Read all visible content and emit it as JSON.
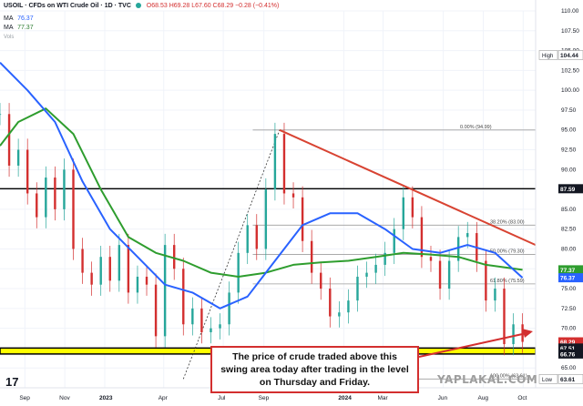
{
  "header": {
    "symbol": "USOIL · CFDs on WTI Crude Oil · 1D · TVC",
    "ohlc": "O68.53 H69.28 L67.60 C68.29 −0.28 (−0.41%)",
    "ma1_label": "MA",
    "ma1_value": "76.37",
    "ma2_label": "MA",
    "ma2_value": "77.37",
    "extra": "Vols"
  },
  "callout": {
    "text": "The price of crude traded above this swing area today after trading in the level on Thursday and Friday."
  },
  "watermark": "YAPLAKAL.COM",
  "logo": "17",
  "colors": {
    "bull": "#26a69a",
    "bear": "#d32f2f",
    "ma_blue": "#2962ff",
    "ma_green": "#2e9d2e",
    "trendline": "#d84332",
    "zone": "#ffff00"
  },
  "chart_data": {
    "type": "line",
    "title": "",
    "xlabel": "",
    "ylabel": "",
    "ylim": [
      62.5,
      110.0
    ],
    "y_ticks": [
      65.0,
      67.5,
      70.0,
      72.5,
      75.0,
      77.5,
      80.0,
      82.5,
      85.0,
      87.5,
      90.0,
      92.5,
      95.0,
      97.5,
      100.0,
      102.5,
      105.0,
      107.5,
      110.0
    ],
    "x_ticks": [
      "Sep",
      "Nov",
      "2023",
      "Apr",
      "Jul",
      "Sep",
      "2024",
      "Mar",
      "Jun",
      "Aug",
      "Oct"
    ],
    "x_tick_positions": [
      "2022-09-01",
      "2022-11-01",
      "2023-01-01",
      "2023-04-01",
      "2023-07-01",
      "2023-09-01",
      "2024-01-01",
      "2024-03-01",
      "2024-06-01",
      "2024-08-01",
      "2024-10-01"
    ],
    "x_range": [
      "2022-07-25",
      "2024-10-20"
    ],
    "price": {
      "name": "USOIL",
      "x": [
        "2022-07-25",
        "2022-08-08",
        "2022-08-22",
        "2022-09-05",
        "2022-09-19",
        "2022-10-03",
        "2022-10-17",
        "2022-10-31",
        "2022-11-14",
        "2022-11-28",
        "2022-12-12",
        "2022-12-26",
        "2023-01-09",
        "2023-01-23",
        "2023-02-06",
        "2023-02-20",
        "2023-03-06",
        "2023-03-20",
        "2023-04-03",
        "2023-04-17",
        "2023-05-01",
        "2023-05-15",
        "2023-05-29",
        "2023-06-12",
        "2023-06-26",
        "2023-07-10",
        "2023-07-24",
        "2023-08-07",
        "2023-08-21",
        "2023-09-04",
        "2023-09-18",
        "2023-10-02",
        "2023-10-16",
        "2023-10-30",
        "2023-11-13",
        "2023-11-27",
        "2023-12-11",
        "2023-12-25",
        "2024-01-08",
        "2024-01-22",
        "2024-02-05",
        "2024-02-19",
        "2024-03-04",
        "2024-03-18",
        "2024-04-01",
        "2024-04-15",
        "2024-04-29",
        "2024-05-13",
        "2024-05-27",
        "2024-06-10",
        "2024-06-24",
        "2024-07-08",
        "2024-07-22",
        "2024-08-05",
        "2024-08-19",
        "2024-09-02",
        "2024-09-16",
        "2024-09-30"
      ],
      "values": [
        97.0,
        90.5,
        92.5,
        87.0,
        84.0,
        89.0,
        85.0,
        90.0,
        80.0,
        77.0,
        75.5,
        79.0,
        76.0,
        80.5,
        74.5,
        76.5,
        75.5,
        69.0,
        80.5,
        77.5,
        70.5,
        72.5,
        69.5,
        70.0,
        70.5,
        74.5,
        79.5,
        83.0,
        80.0,
        87.5,
        94.5,
        87.0,
        86.5,
        81.0,
        77.0,
        75.0,
        71.5,
        72.0,
        73.5,
        76.5,
        77.0,
        78.0,
        79.5,
        82.5,
        86.5,
        84.0,
        79.0,
        78.5,
        75.0,
        78.5,
        81.5,
        82.0,
        78.5,
        73.5,
        75.0,
        68.0,
        70.5,
        68.29
      ]
    },
    "ma_fast": {
      "name": "MA",
      "x": [
        "2022-07-25",
        "2022-09-05",
        "2022-10-17",
        "2022-11-28",
        "2023-01-09",
        "2023-02-20",
        "2023-04-03",
        "2023-05-15",
        "2023-06-26",
        "2023-08-07",
        "2023-09-18",
        "2023-10-30",
        "2023-12-11",
        "2024-01-22",
        "2024-03-04",
        "2024-04-15",
        "2024-05-27",
        "2024-07-08",
        "2024-08-19",
        "2024-09-30"
      ],
      "values": [
        103.5,
        100.0,
        96.0,
        88.5,
        82.5,
        79.0,
        75.5,
        74.5,
        72.5,
        74.0,
        78.5,
        83.0,
        84.5,
        84.5,
        82.5,
        80.0,
        79.5,
        80.5,
        79.5,
        76.37
      ]
    },
    "ma_slow": {
      "name": "MA",
      "x": [
        "2022-07-25",
        "2022-08-22",
        "2022-10-03",
        "2022-11-14",
        "2022-12-26",
        "2023-02-06",
        "2023-03-20",
        "2023-05-01",
        "2023-06-12",
        "2023-07-24",
        "2023-09-04",
        "2023-10-16",
        "2023-11-27",
        "2024-01-08",
        "2024-02-19",
        "2024-04-01",
        "2024-05-13",
        "2024-06-24",
        "2024-08-05",
        "2024-09-30"
      ],
      "values": [
        93.0,
        96.0,
        97.7,
        94.5,
        87.5,
        81.5,
        79.5,
        78.5,
        77.0,
        76.5,
        77.0,
        78.0,
        78.3,
        78.5,
        79.0,
        79.5,
        79.3,
        79.0,
        78.0,
        77.37
      ]
    },
    "swing_zone": {
      "low": 66.76,
      "high": 67.51
    },
    "horizontal_levels": [
      {
        "value": 87.59,
        "label": "87.59"
      }
    ],
    "fibonacci": [
      {
        "value": 94.99,
        "label": "0.00% (94.99)"
      },
      {
        "value": 83.0,
        "label": "38.20% (83.00)"
      },
      {
        "value": 79.3,
        "label": "50.00% (79.30)"
      },
      {
        "value": 75.59,
        "label": "61.80% (75.59)"
      },
      {
        "value": 63.61,
        "label": "100.00% (63.61)"
      }
    ],
    "trendline": {
      "x": [
        "2023-09-25",
        "2024-10-20"
      ],
      "y": [
        94.99,
        80.5
      ]
    },
    "dotted_line": {
      "x": [
        "2023-05-01",
        "2023-09-25"
      ],
      "y": [
        63.61,
        94.99
      ]
    },
    "price_labels": [
      {
        "text": "High",
        "value": "104.44",
        "y": 104.44,
        "style": "high"
      },
      {
        "text": "",
        "value": "87.59",
        "y": 87.59,
        "style": "black"
      },
      {
        "text": "",
        "value": "77.37",
        "y": 77.37,
        "style": "green"
      },
      {
        "text": "",
        "value": "76.37",
        "y": 76.37,
        "style": "blue"
      },
      {
        "text": "",
        "value": "68.29",
        "y": 68.29,
        "style": "red"
      },
      {
        "text": "",
        "value": "67.51",
        "y": 67.51,
        "style": "black"
      },
      {
        "text": "",
        "value": "66.76",
        "y": 66.76,
        "style": "black"
      },
      {
        "text": "Low",
        "value": "63.61",
        "y": 63.61,
        "style": "low"
      }
    ]
  }
}
